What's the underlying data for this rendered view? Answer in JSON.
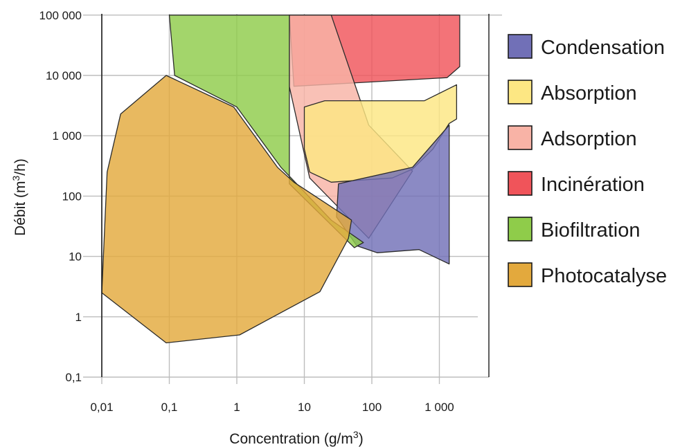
{
  "chart_data": {
    "type": "area",
    "title": "",
    "xlabel_text": "Concentration (g/m",
    "xlabel_sup": "3",
    "xlabel_close": ")",
    "ylabel_text": "Débit (m",
    "ylabel_sup": "3",
    "ylabel_close": "/h)",
    "x_scale": "log",
    "y_scale": "log",
    "xlim": [
      0.01,
      2000
    ],
    "ylim": [
      0.1,
      100000
    ],
    "grid": true,
    "legend_position": "right",
    "x_ticks": [
      {
        "value": 0.01,
        "label": "0,01"
      },
      {
        "value": 0.1,
        "label": "0,1"
      },
      {
        "value": 1,
        "label": "1"
      },
      {
        "value": 10,
        "label": "10"
      },
      {
        "value": 100,
        "label": "100"
      },
      {
        "value": 1000,
        "label": "1 000"
      }
    ],
    "y_ticks": [
      {
        "value": 0.1,
        "label": "0,1"
      },
      {
        "value": 1,
        "label": "1"
      },
      {
        "value": 10,
        "label": "10"
      },
      {
        "value": 100,
        "label": "100"
      },
      {
        "value": 1000,
        "label": "1 000"
      },
      {
        "value": 10000,
        "label": "10 000"
      },
      {
        "value": 100000,
        "label": "100 000"
      }
    ],
    "series": [
      {
        "name": "Incinération",
        "color": "#f0545a",
        "legend_color": "#f0545a",
        "points": [
          [
            6,
            100000
          ],
          [
            2000,
            100000
          ],
          [
            2000,
            14000
          ],
          [
            1300,
            9200
          ],
          [
            7,
            6600
          ]
        ]
      },
      {
        "name": "Adsorption",
        "color": "#f8b3a6",
        "legend_color": "#f8b3a6",
        "points": [
          [
            6,
            100000
          ],
          [
            25,
            100000
          ],
          [
            90,
            1500
          ],
          [
            400,
            260
          ],
          [
            90,
            20
          ],
          [
            12,
            200
          ],
          [
            6,
            6500
          ]
        ]
      },
      {
        "name": "Absorption",
        "color": "#fde783",
        "legend_color": "#fde783",
        "points": [
          [
            10,
            3000
          ],
          [
            20,
            3800
          ],
          [
            600,
            3800
          ],
          [
            1800,
            7000
          ],
          [
            1800,
            1900
          ],
          [
            1400,
            1600
          ],
          [
            800,
            600
          ],
          [
            400,
            280
          ],
          [
            200,
            200
          ],
          [
            25,
            170
          ],
          [
            12,
            250
          ],
          [
            10,
            600
          ]
        ]
      },
      {
        "name": "Condensation",
        "color": "#7170b7",
        "legend_color": "#7170b7",
        "points": [
          [
            32,
            160
          ],
          [
            400,
            300
          ],
          [
            1400,
            1500
          ],
          [
            1400,
            7.5
          ],
          [
            500,
            13
          ],
          [
            120,
            11.5
          ],
          [
            60,
            15
          ],
          [
            30,
            45
          ]
        ]
      },
      {
        "name": "Biofiltration",
        "color": "#8fcc4a",
        "legend_color": "#8fcc4a",
        "points": [
          [
            0.1,
            100000
          ],
          [
            1.7,
            100000
          ],
          [
            6,
            100000
          ],
          [
            6,
            160
          ],
          [
            55,
            14
          ],
          [
            75,
            17
          ],
          [
            25,
            40
          ],
          [
            4.5,
            300
          ],
          [
            1,
            3000
          ],
          [
            0.12,
            10000
          ]
        ]
      },
      {
        "name": "Photocatalyse",
        "color": "#e3a93d",
        "legend_color": "#e3a93d",
        "points": [
          [
            0.09,
            10000
          ],
          [
            0.9,
            3000
          ],
          [
            4,
            300
          ],
          [
            7,
            170
          ],
          [
            50,
            40
          ],
          [
            45,
            20
          ],
          [
            17,
            2.6
          ],
          [
            1.1,
            0.5
          ],
          [
            0.09,
            0.37
          ],
          [
            0.01,
            2.5
          ],
          [
            0.012,
            250
          ],
          [
            0.019,
            2300
          ]
        ]
      }
    ]
  }
}
